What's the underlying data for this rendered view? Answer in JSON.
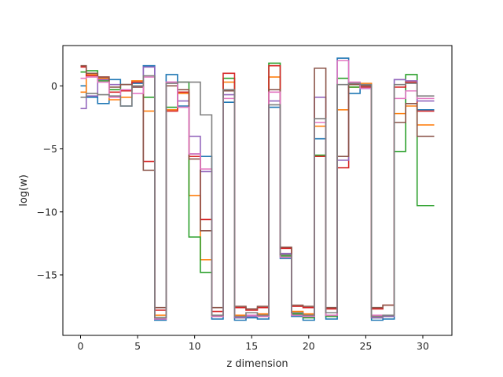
{
  "chart_data": {
    "type": "line",
    "step": "mid",
    "xlabel": "z dimension",
    "ylabel": "log(w)",
    "xlim": [
      -1.55,
      32.55
    ],
    "ylim": [
      -19.8,
      3.2
    ],
    "xticks": [
      0,
      5,
      10,
      15,
      20,
      25,
      30
    ],
    "yticks": [
      -15,
      -10,
      -5,
      0
    ],
    "x": [
      0,
      1,
      2,
      3,
      4,
      5,
      6,
      7,
      8,
      9,
      10,
      11,
      12,
      13,
      14,
      15,
      16,
      17,
      18,
      19,
      20,
      21,
      22,
      23,
      24,
      25,
      26,
      27,
      28,
      29,
      30,
      31
    ],
    "series": [
      {
        "color": "#1f77b4",
        "values": [
          0.0,
          -0.9,
          -1.4,
          0.5,
          -1.6,
          0.2,
          1.6,
          -18.6,
          0.9,
          -1.6,
          -5.4,
          -5.6,
          -18.5,
          -1.3,
          -18.6,
          -18.4,
          -18.5,
          -1.7,
          -13.7,
          -18.3,
          -18.6,
          -4.2,
          -18.5,
          2.2,
          -0.6,
          -0.2,
          -18.6,
          -18.5,
          0.5,
          -1.4,
          -1.9,
          -1.9
        ]
      },
      {
        "color": "#ff7f0e",
        "values": [
          -0.5,
          0.9,
          0.6,
          -1.1,
          -0.9,
          0.4,
          -2.0,
          -18.2,
          -1.9,
          -0.6,
          -8.7,
          -13.8,
          -18.2,
          0.3,
          -18.2,
          -18.2,
          -18.1,
          0.7,
          -13.4,
          -17.9,
          -18.1,
          -3.2,
          -18.2,
          -1.9,
          -0.1,
          0.2,
          -18.3,
          -18.2,
          -2.2,
          -1.6,
          -3.1,
          -3.1
        ]
      },
      {
        "color": "#2ca02c",
        "values": [
          1.1,
          1.2,
          0.4,
          -0.3,
          0.1,
          0.0,
          -0.9,
          -18.4,
          -1.7,
          0.3,
          -12.0,
          -14.8,
          -18.3,
          0.6,
          -18.4,
          -18.2,
          -18.3,
          1.8,
          -13.5,
          -18.1,
          -18.4,
          -5.5,
          -18.3,
          0.6,
          -0.1,
          0.0,
          -18.4,
          -18.3,
          -5.2,
          0.9,
          -9.5,
          -9.5
        ]
      },
      {
        "color": "#d62728",
        "values": [
          1.5,
          0.8,
          0.7,
          -0.5,
          -0.4,
          0.3,
          -6.0,
          -17.8,
          -2.0,
          -0.5,
          -5.6,
          -10.6,
          -17.9,
          1.0,
          -17.6,
          -17.8,
          -17.6,
          1.6,
          -12.9,
          -17.5,
          -17.6,
          -5.6,
          -17.7,
          -6.5,
          0.2,
          -0.1,
          -17.7,
          -17.4,
          -0.1,
          0.3,
          -2.0,
          -2.0
        ]
      },
      {
        "color": "#9467bd",
        "values": [
          -1.8,
          -0.8,
          0.5,
          0.1,
          0.1,
          -0.1,
          1.5,
          -18.5,
          0.3,
          -1.2,
          -4.0,
          -6.8,
          -18.3,
          -0.7,
          -18.4,
          -18.3,
          -18.3,
          -1.2,
          -13.3,
          -18.2,
          -18.3,
          -0.9,
          -18.2,
          -5.9,
          0.2,
          0.0,
          -18.4,
          -18.3,
          0.5,
          0.4,
          -1.2,
          -1.2
        ]
      },
      {
        "color": "#8c564b",
        "values": [
          1.6,
          1.0,
          0.7,
          -0.1,
          0.1,
          -0.1,
          -6.7,
          -17.6,
          0.0,
          -0.3,
          -5.8,
          -11.5,
          -17.6,
          -0.4,
          -17.5,
          -17.7,
          -17.5,
          -0.3,
          -12.8,
          -17.4,
          -17.5,
          1.4,
          -17.6,
          -5.6,
          0.1,
          0.0,
          -17.6,
          -17.4,
          -2.9,
          -1.4,
          -4.0,
          -4.0
        ]
      },
      {
        "color": "#e377c2",
        "values": [
          0.6,
          0.7,
          0.3,
          -0.9,
          -0.3,
          -0.6,
          0.7,
          -18.5,
          0.3,
          -1.7,
          -5.4,
          -6.6,
          -18.3,
          -1.0,
          -18.3,
          -18.2,
          -18.3,
          -0.5,
          -13.6,
          -18.2,
          -18.3,
          -2.9,
          -18.2,
          2.0,
          0.3,
          -0.2,
          -18.2,
          -18.2,
          -1.0,
          -0.4,
          -1.0,
          -1.0
        ]
      },
      {
        "color": "#7f7f7f",
        "values": [
          -0.9,
          -0.6,
          -0.7,
          -0.8,
          -1.6,
          0.0,
          0.8,
          -18.4,
          0.2,
          0.3,
          0.3,
          -2.3,
          -18.2,
          -0.3,
          -18.3,
          -18.0,
          -18.2,
          -1.5,
          -13.4,
          -18.0,
          -18.2,
          -2.6,
          -18.0,
          0.1,
          0.2,
          0.1,
          -18.3,
          -18.2,
          0.1,
          0.2,
          -0.8,
          -0.8
        ]
      }
    ]
  }
}
